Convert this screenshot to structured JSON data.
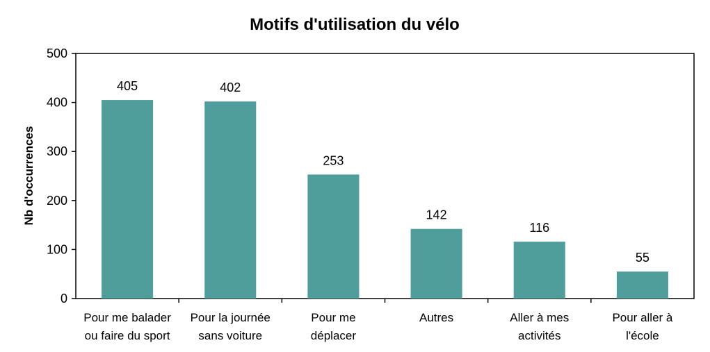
{
  "chart_data": {
    "type": "bar",
    "title": "Motifs d'utilisation du vélo",
    "ylabel": "Nb d'occurrences",
    "xlabel": "",
    "ylim": [
      0,
      500
    ],
    "yticks": [
      "0",
      "100",
      "200",
      "300",
      "400",
      "500"
    ],
    "categories": [
      [
        "Pour me balader",
        "ou faire du sport"
      ],
      [
        "Pour la journée",
        "sans voiture"
      ],
      [
        "Pour me",
        "déplacer"
      ],
      [
        "Autres"
      ],
      [
        "Aller à mes",
        "activités"
      ],
      [
        "Pour aller à",
        "l'école"
      ]
    ],
    "values": [
      405,
      402,
      253,
      142,
      116,
      55
    ],
    "data_labels": [
      "405",
      "402",
      "253",
      "142",
      "116",
      "55"
    ],
    "bar_color": "#4f9e9b",
    "grid": false,
    "legend": "none"
  }
}
